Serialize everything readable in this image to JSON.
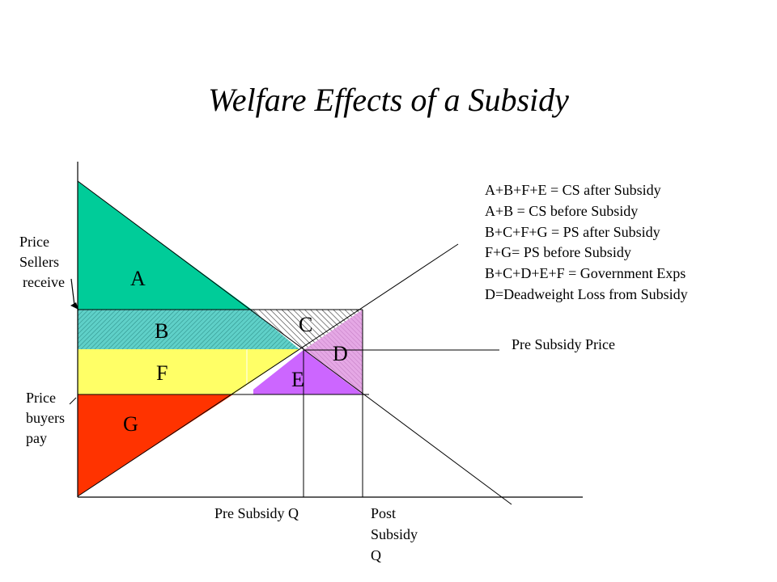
{
  "title": "Welfare Effects of a Subsidy",
  "regions": {
    "A": "A",
    "B": "B",
    "C": "C",
    "D": "D",
    "E": "E",
    "F": "F",
    "G": "G"
  },
  "colors": {
    "A": "#00cc99",
    "B": "#5fd0c8",
    "C": "#9e9e9e",
    "D": "#e5a8e5",
    "E": "#cc66ff",
    "F": "#ffff66",
    "G": "#ff3300",
    "lines": "#000000"
  },
  "labels": {
    "sellers_line1": "Price",
    "sellers_line2": "Sellers",
    "sellers_line3": "receive",
    "buyers_line1": "Price",
    "buyers_line2": "buyers",
    "buyers_line3": "pay",
    "pre_subsidy_price": "Pre Subsidy Price",
    "pre_subsidy_q": "Pre Subsidy Q",
    "post_line1": "Post",
    "post_line2": "Subsidy",
    "post_line3": "Q"
  },
  "legend": [
    "A+B+F+E = CS after Subsidy",
    "A+B = CS  before Subsidy",
    "B+C+F+G = PS after Subsidy",
    "F+G= PS before Subsidy",
    "B+C+D+E+F = Government Exps",
    "D=Deadweight Loss from Subsidy"
  ]
}
